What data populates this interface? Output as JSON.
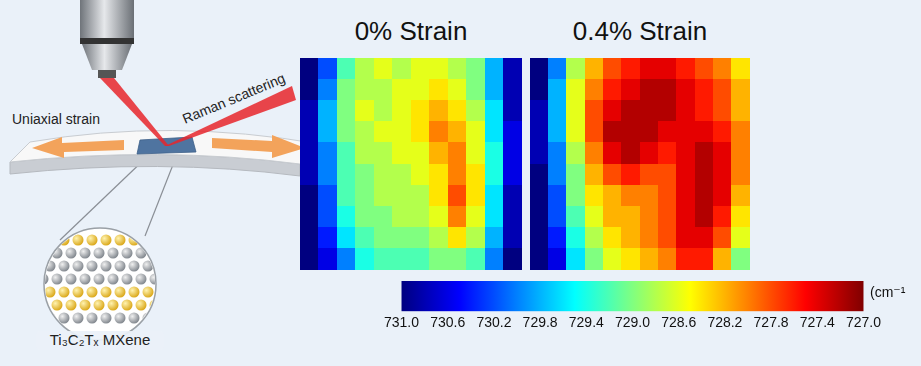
{
  "schematic": {
    "strain_label": "Uniaxial strain",
    "raman_label": "Raman scattering",
    "material_label": "Ti₃C₂Tₓ MXene"
  },
  "chart_data": [
    {
      "type": "heatmap",
      "title": "0% Strain",
      "tick_labels": false,
      "cells": [
        [
          731.0,
          730.2,
          729.2,
          728.8,
          728.6,
          728.8,
          728.6,
          728.6,
          728.8,
          729.0,
          729.8,
          730.8
        ],
        [
          731.0,
          730.0,
          729.0,
          728.8,
          728.8,
          728.6,
          728.6,
          728.4,
          728.6,
          729.0,
          729.8,
          730.8
        ],
        [
          730.8,
          729.8,
          729.0,
          728.6,
          728.8,
          728.6,
          728.4,
          728.2,
          728.4,
          728.8,
          729.6,
          730.8
        ],
        [
          730.8,
          729.8,
          729.0,
          728.8,
          728.6,
          728.6,
          728.4,
          728.0,
          728.2,
          728.6,
          729.6,
          730.6
        ],
        [
          730.8,
          730.0,
          729.2,
          728.8,
          728.8,
          728.6,
          728.6,
          728.2,
          728.0,
          728.6,
          729.4,
          730.6
        ],
        [
          730.8,
          730.0,
          729.2,
          729.0,
          728.8,
          728.8,
          728.6,
          728.4,
          728.0,
          728.4,
          729.4,
          730.6
        ],
        [
          731.0,
          730.2,
          729.2,
          729.0,
          728.8,
          728.8,
          728.8,
          728.4,
          727.8,
          728.4,
          729.6,
          730.8
        ],
        [
          731.0,
          730.2,
          729.4,
          729.0,
          729.0,
          728.8,
          728.8,
          728.6,
          728.0,
          728.6,
          729.6,
          730.8
        ],
        [
          731.0,
          730.4,
          729.6,
          729.2,
          729.0,
          729.0,
          729.0,
          728.8,
          728.4,
          728.8,
          729.8,
          730.8
        ],
        [
          731.0,
          730.6,
          730.0,
          729.4,
          729.2,
          729.2,
          729.2,
          729.0,
          729.0,
          729.2,
          730.0,
          731.0
        ]
      ]
    },
    {
      "type": "heatmap",
      "title": "0.4% Strain",
      "tick_labels": false,
      "cells": [
        [
          731.0,
          730.0,
          728.8,
          728.2,
          727.8,
          727.6,
          727.4,
          727.4,
          727.6,
          727.8,
          728.0,
          728.4
        ],
        [
          731.0,
          729.8,
          728.6,
          728.0,
          727.6,
          727.4,
          727.2,
          727.2,
          727.4,
          727.6,
          727.8,
          728.2
        ],
        [
          730.8,
          729.8,
          728.6,
          727.8,
          727.4,
          727.2,
          727.2,
          727.2,
          727.4,
          727.6,
          727.8,
          728.2
        ],
        [
          730.8,
          729.8,
          728.6,
          727.8,
          727.2,
          727.2,
          727.2,
          727.4,
          727.4,
          727.4,
          727.6,
          728.0
        ],
        [
          730.8,
          730.0,
          728.8,
          728.0,
          727.4,
          727.2,
          727.4,
          727.6,
          727.4,
          727.2,
          727.4,
          728.0
        ],
        [
          731.0,
          730.0,
          729.0,
          728.2,
          727.8,
          727.6,
          727.8,
          727.8,
          727.4,
          727.2,
          727.4,
          728.0
        ],
        [
          731.0,
          730.2,
          729.0,
          728.4,
          728.2,
          728.0,
          728.0,
          727.8,
          727.4,
          727.2,
          727.4,
          728.2
        ],
        [
          731.0,
          730.2,
          729.2,
          728.6,
          728.2,
          728.2,
          728.0,
          727.8,
          727.4,
          727.2,
          727.6,
          728.4
        ],
        [
          731.0,
          730.4,
          729.4,
          728.8,
          728.4,
          728.2,
          728.0,
          727.8,
          727.4,
          727.4,
          727.8,
          728.6
        ],
        [
          731.0,
          730.6,
          729.6,
          729.0,
          728.6,
          728.4,
          728.2,
          728.0,
          727.6,
          727.6,
          728.2,
          729.0
        ]
      ]
    }
  ],
  "colorbar": {
    "range": [
      731,
      727
    ],
    "label": "(cm⁻¹",
    "ticks": [
      {
        "value": 731,
        "label": "731.0"
      },
      730.6,
      730.2,
      729.8,
      729.4,
      {
        "value": 729,
        "label": "729.0"
      },
      728.6,
      728.2,
      727.8,
      727.4,
      {
        "value": 727,
        "label": "727.0"
      }
    ]
  }
}
